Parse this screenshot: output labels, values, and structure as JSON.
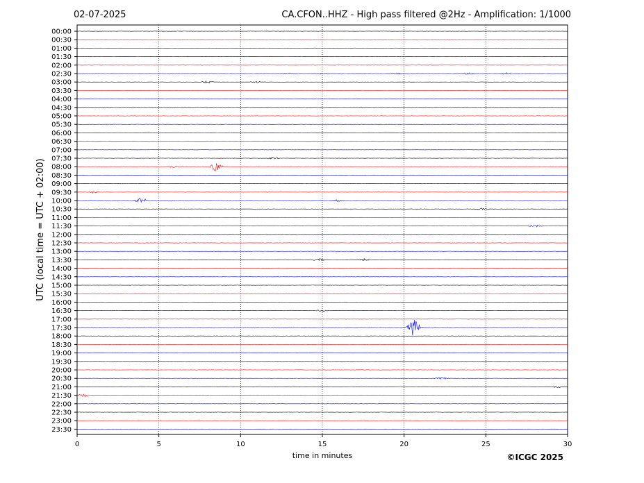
{
  "header": {
    "date": "02-07-2025",
    "title": "CA.CFON..HHZ - High pass filtered @2Hz - Amplification: 1/1000"
  },
  "footer": {
    "copyright": "©ICGC 2025"
  },
  "chart_data": {
    "type": "line",
    "xlabel": "time in minutes",
    "ylabel": "UTC (local time = UTC + 02:00)",
    "xlim": [
      0,
      30
    ],
    "x_ticks": [
      0,
      5,
      10,
      15,
      20,
      25,
      30
    ],
    "x_tick_labels": [
      "0",
      "5",
      "10",
      "15",
      "20",
      "25",
      "30"
    ],
    "grid": "vertical dotted lines at 5-minute intervals",
    "row_labels": [
      "00:00",
      "00:30",
      "01:00",
      "01:30",
      "02:00",
      "02:30",
      "03:00",
      "03:30",
      "04:00",
      "04:30",
      "05:00",
      "05:30",
      "06:00",
      "06:30",
      "07:00",
      "07:30",
      "08:00",
      "08:30",
      "09:00",
      "09:30",
      "10:00",
      "10:30",
      "11:00",
      "11:30",
      "12:00",
      "12:30",
      "13:00",
      "13:30",
      "14:00",
      "14:30",
      "15:00",
      "15:30",
      "16:00",
      "16:30",
      "17:00",
      "17:30",
      "18:00",
      "18:30",
      "19:00",
      "19:30",
      "20:00",
      "20:30",
      "21:00",
      "21:30",
      "22:00",
      "22:30",
      "23:00",
      "23:30"
    ],
    "row_colors": [
      "#000000",
      "#ff0000",
      "#0000ff"
    ],
    "events": [
      {
        "row": "02:30",
        "minute": 12.9,
        "amplitude": 0.2
      },
      {
        "row": "02:30",
        "minute": 15.0,
        "amplitude": 0.2
      },
      {
        "row": "02:30",
        "minute": 19.6,
        "amplitude": 0.2
      },
      {
        "row": "02:30",
        "minute": 23.9,
        "amplitude": 0.3
      },
      {
        "row": "02:30",
        "minute": 26.3,
        "amplitude": 0.3
      },
      {
        "row": "03:00",
        "minute": 8.0,
        "amplitude": 0.4
      },
      {
        "row": "03:00",
        "minute": 11.0,
        "amplitude": 0.3
      },
      {
        "row": "07:30",
        "minute": 12.0,
        "amplitude": 0.35
      },
      {
        "row": "08:00",
        "minute": 6.0,
        "amplitude": 0.3
      },
      {
        "row": "08:00",
        "minute": 8.5,
        "amplitude": 1.5
      },
      {
        "row": "09:30",
        "minute": 1.0,
        "amplitude": 0.3
      },
      {
        "row": "10:00",
        "minute": 3.9,
        "amplitude": 1.0
      },
      {
        "row": "10:00",
        "minute": 16.0,
        "amplitude": 0.3
      },
      {
        "row": "10:30",
        "minute": 24.8,
        "amplitude": 0.3
      },
      {
        "row": "11:30",
        "minute": 28.0,
        "amplitude": 0.4
      },
      {
        "row": "13:30",
        "minute": 14.8,
        "amplitude": 0.5
      },
      {
        "row": "13:30",
        "minute": 17.5,
        "amplitude": 0.4
      },
      {
        "row": "16:30",
        "minute": 15.0,
        "amplitude": 0.3
      },
      {
        "row": "17:30",
        "minute": 20.6,
        "amplitude": 3.0
      },
      {
        "row": "20:30",
        "minute": 22.3,
        "amplitude": 0.4
      },
      {
        "row": "21:00",
        "minute": 29.4,
        "amplitude": 0.3
      },
      {
        "row": "21:30",
        "minute": 0.4,
        "amplitude": 0.5
      }
    ]
  }
}
